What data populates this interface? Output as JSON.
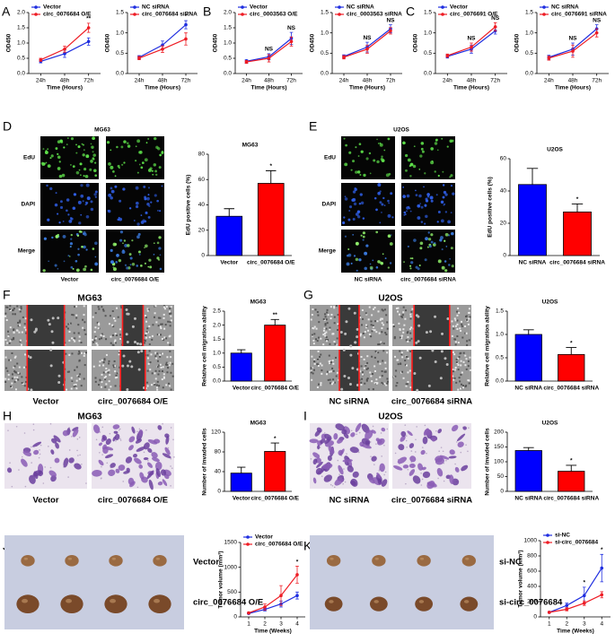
{
  "panel_labels": [
    "A",
    "B",
    "C",
    "D",
    "E",
    "F",
    "G",
    "H",
    "I",
    "J",
    "K"
  ],
  "image_panels": [
    {
      "title": "MG63",
      "rows": [
        "EdU",
        "DAPI",
        "Merge"
      ],
      "columns": [
        "Vector",
        "circ_0076684 O/E"
      ]
    },
    {
      "title": "U2OS",
      "rows": [
        "EdU",
        "DAPI",
        "Merge"
      ],
      "columns": [
        "NC siRNA",
        "circ_0076684 siRNA"
      ]
    },
    {
      "title": "MG63",
      "columns": [
        "Vector",
        "circ_0076684 O/E"
      ]
    },
    {
      "title": "U2OS",
      "columns": [
        "NC siRNA",
        "circ_0076684 siRNA"
      ]
    },
    {
      "title": "MG63",
      "columns": [
        "Vector",
        "circ_0076684 O/E"
      ]
    },
    {
      "title": "U2OS",
      "columns": [
        "NC siRNA",
        "circ_0076684 siRNA"
      ]
    },
    {
      "rows": [
        "Vector",
        "circ_0076684 O/E"
      ]
    },
    {
      "rows": [
        "si-NC",
        "si-circ_0076684"
      ]
    }
  ],
  "chart_data": [
    {
      "type": "line",
      "categories": [
        "24h",
        "48h",
        "72h"
      ],
      "x_label": "Time (Hours)",
      "y_label": "OD450",
      "ylim": [
        0,
        2.0
      ],
      "yticks": [
        {
          "value": 0,
          "label": "0.0"
        },
        {
          "value": 0.5,
          "label": "0.5"
        },
        {
          "value": 1.0,
          "label": "1.0"
        },
        {
          "value": 1.5,
          "label": "1.5"
        },
        {
          "value": 2.0,
          "label": "2.0"
        }
      ],
      "legend": "upper left",
      "series": [
        {
          "name": "Vector",
          "color": "#1f2ee0",
          "values": [
            0.4,
            0.65,
            1.05
          ],
          "errors": [
            0.05,
            0.12,
            0.12
          ]
        },
        {
          "name": "circ_0076684 O/E",
          "color": "#ee1c24",
          "values": [
            0.45,
            0.8,
            1.5
          ],
          "errors": [
            0.05,
            0.1,
            0.15
          ]
        }
      ],
      "annotations": [
        {
          "text": "**",
          "category": "72h"
        }
      ]
    },
    {
      "type": "line",
      "categories": [
        "24h",
        "48h",
        "72h"
      ],
      "x_label": "Time (Hours)",
      "y_label": "OD450",
      "ylim": [
        0,
        1.5
      ],
      "yticks": [
        {
          "value": 0,
          "label": "0.0"
        },
        {
          "value": 0.5,
          "label": "0.5"
        },
        {
          "value": 1.0,
          "label": "1.0"
        },
        {
          "value": 1.5,
          "label": "1.5"
        }
      ],
      "legend": "upper left",
      "series": [
        {
          "name": "NC siRNA",
          "color": "#1f2ee0",
          "values": [
            0.4,
            0.7,
            1.2
          ],
          "errors": [
            0.04,
            0.1,
            0.1
          ]
        },
        {
          "name": "circ_0076684 siRNA",
          "color": "#ee1c24",
          "values": [
            0.38,
            0.6,
            0.85
          ],
          "errors": [
            0.04,
            0.08,
            0.15
          ]
        }
      ],
      "annotations": [
        {
          "text": "*",
          "category": "72h"
        }
      ]
    },
    {
      "type": "line",
      "categories": [
        "24h",
        "48h",
        "72h"
      ],
      "x_label": "Time (Hours)",
      "y_label": "OD450",
      "ylim": [
        0,
        2.0
      ],
      "yticks": [
        {
          "value": 0,
          "label": "0.0"
        },
        {
          "value": 0.5,
          "label": "0.5"
        },
        {
          "value": 1.0,
          "label": "1.0"
        },
        {
          "value": 1.5,
          "label": "1.5"
        },
        {
          "value": 2.0,
          "label": "2.0"
        }
      ],
      "legend": "upper left",
      "series": [
        {
          "name": "Vector",
          "color": "#1f2ee0",
          "values": [
            0.4,
            0.55,
            1.15
          ],
          "errors": [
            0.06,
            0.1,
            0.2
          ]
        },
        {
          "name": "circ_0003563 O/E",
          "color": "#ee1c24",
          "values": [
            0.38,
            0.5,
            1.05
          ],
          "errors": [
            0.05,
            0.12,
            0.15
          ]
        }
      ],
      "annotations": [
        {
          "text": "NS",
          "category": "48h"
        },
        {
          "text": "NS",
          "category": "72h"
        }
      ]
    },
    {
      "type": "line",
      "categories": [
        "24h",
        "48h",
        "72h"
      ],
      "x_label": "Time (Hours)",
      "y_label": "OD450",
      "ylim": [
        0,
        1.5
      ],
      "yticks": [
        {
          "value": 0,
          "label": "0.0"
        },
        {
          "value": 0.5,
          "label": "0.5"
        },
        {
          "value": 1.0,
          "label": "1.0"
        },
        {
          "value": 1.5,
          "label": "1.5"
        }
      ],
      "legend": "upper left",
      "series": [
        {
          "name": "NC siRNA",
          "color": "#1f2ee0",
          "values": [
            0.42,
            0.65,
            1.1
          ],
          "errors": [
            0.04,
            0.12,
            0.1
          ]
        },
        {
          "name": "circ_0003563 siRNA",
          "color": "#ee1c24",
          "values": [
            0.4,
            0.6,
            1.05
          ],
          "errors": [
            0.04,
            0.1,
            0.08
          ]
        }
      ],
      "annotations": [
        {
          "text": "NS",
          "category": "48h"
        },
        {
          "text": "NS",
          "category": "72h"
        }
      ]
    },
    {
      "type": "line",
      "categories": [
        "24h",
        "48h",
        "72h"
      ],
      "x_label": "Time (Hours)",
      "y_label": "OD450",
      "ylim": [
        0,
        1.5
      ],
      "yticks": [
        {
          "value": 0,
          "label": "0.0"
        },
        {
          "value": 0.5,
          "label": "0.5"
        },
        {
          "value": 1.0,
          "label": "1.0"
        },
        {
          "value": 1.5,
          "label": "1.5"
        }
      ],
      "legend": "upper left",
      "series": [
        {
          "name": "Vector",
          "color": "#1f2ee0",
          "values": [
            0.42,
            0.6,
            1.05
          ],
          "errors": [
            0.04,
            0.1,
            0.08
          ]
        },
        {
          "name": "circ_0076691 O/E",
          "color": "#ee1c24",
          "values": [
            0.44,
            0.65,
            1.15
          ],
          "errors": [
            0.04,
            0.1,
            0.1
          ]
        }
      ],
      "annotations": [
        {
          "text": "NS",
          "category": "48h"
        },
        {
          "text": "NS",
          "category": "72h"
        }
      ]
    },
    {
      "type": "line",
      "categories": [
        "24h",
        "48h",
        "72h"
      ],
      "x_label": "Time (Hours)",
      "y_label": "OD450",
      "ylim": [
        0,
        1.5
      ],
      "yticks": [
        {
          "value": 0,
          "label": "0.0"
        },
        {
          "value": 0.5,
          "label": "0.5"
        },
        {
          "value": 1.0,
          "label": "1.0"
        },
        {
          "value": 1.5,
          "label": "1.5"
        }
      ],
      "legend": "upper left",
      "series": [
        {
          "name": "NC siRNA",
          "color": "#1f2ee0",
          "values": [
            0.4,
            0.6,
            1.1
          ],
          "errors": [
            0.05,
            0.15,
            0.1
          ]
        },
        {
          "name": "circ_0076691 siRNA",
          "color": "#ee1c24",
          "values": [
            0.38,
            0.55,
            1.0
          ],
          "errors": [
            0.05,
            0.15,
            0.1
          ]
        }
      ],
      "annotations": [
        {
          "text": "NS",
          "category": "48h"
        },
        {
          "text": "NS",
          "category": "72h"
        }
      ]
    },
    {
      "type": "bar",
      "title": "MG63",
      "y_label": "EdU positive cells (%)",
      "categories": [
        "Vector",
        "circ_0076684 O/E"
      ],
      "values": [
        31,
        57
      ],
      "errors": [
        6,
        10
      ],
      "colors": [
        "#0000ff",
        "#ff0000"
      ],
      "ylim": [
        0,
        80
      ],
      "yticks": [
        0,
        20,
        40,
        60,
        80
      ],
      "annotations": [
        {
          "text": "*",
          "category": "circ_0076684 O/E"
        }
      ]
    },
    {
      "type": "bar",
      "title": "U2OS",
      "y_label": "EdU positive cells (%)",
      "categories": [
        "NC siRNA",
        "circ_0076684 siRNA"
      ],
      "values": [
        44,
        27
      ],
      "errors": [
        10,
        5
      ],
      "colors": [
        "#0000ff",
        "#ff0000"
      ],
      "ylim": [
        0,
        60
      ],
      "yticks": [
        0,
        20,
        40,
        60
      ],
      "annotations": [
        {
          "text": "*",
          "category": "circ_0076684 siRNA"
        }
      ]
    },
    {
      "type": "bar",
      "title": "MG63",
      "y_label": "Relative cell migration ability",
      "categories": [
        "Vector",
        "circ_0076684 O/E"
      ],
      "values": [
        1.0,
        2.0
      ],
      "errors": [
        0.12,
        0.2
      ],
      "colors": [
        "#0000ff",
        "#ff0000"
      ],
      "ylim": [
        0,
        2.5
      ],
      "yticks": [
        {
          "value": 0,
          "label": "0.0"
        },
        {
          "value": 0.5,
          "label": "0.5"
        },
        {
          "value": 1.0,
          "label": "1.0"
        },
        {
          "value": 1.5,
          "label": "1.5"
        },
        {
          "value": 2.0,
          "label": "2.0"
        },
        {
          "value": 2.5,
          "label": "2.5"
        }
      ],
      "annotations": [
        {
          "text": "**",
          "category": "circ_0076684 O/E"
        }
      ]
    },
    {
      "type": "bar",
      "title": "U2OS",
      "y_label": "Relative cell migration ability",
      "categories": [
        "NC siRNA",
        "circ_0076684 siRNA"
      ],
      "values": [
        1.0,
        0.57
      ],
      "errors": [
        0.1,
        0.15
      ],
      "colors": [
        "#0000ff",
        "#ff0000"
      ],
      "ylim": [
        0,
        1.5
      ],
      "yticks": [
        {
          "value": 0,
          "label": "0.0"
        },
        {
          "value": 0.5,
          "label": "0.5"
        },
        {
          "value": 1.0,
          "label": "1.0"
        },
        {
          "value": 1.5,
          "label": "1.5"
        }
      ],
      "annotations": [
        {
          "text": "*",
          "category": "circ_0076684 siRNA"
        }
      ]
    },
    {
      "type": "bar",
      "title": "MG63",
      "y_label": "Number of invaded cells",
      "categories": [
        "Vector",
        "circ_0076684 O/E"
      ],
      "values": [
        37,
        81
      ],
      "errors": [
        12,
        17
      ],
      "colors": [
        "#0000ff",
        "#ff0000"
      ],
      "ylim": [
        0,
        120
      ],
      "yticks": [
        0,
        40,
        80,
        120
      ],
      "annotations": [
        {
          "text": "*",
          "category": "circ_0076684 O/E"
        }
      ]
    },
    {
      "type": "bar",
      "title": "U2OS",
      "y_label": "Number of invaded cells",
      "categories": [
        "NC siRNA",
        "circ_0076684 siRNA"
      ],
      "values": [
        138,
        68
      ],
      "errors": [
        10,
        20
      ],
      "colors": [
        "#0000ff",
        "#ff0000"
      ],
      "ylim": [
        0,
        200
      ],
      "yticks": [
        0,
        50,
        100,
        150,
        200
      ],
      "annotations": [
        {
          "text": "*",
          "category": "circ_0076684 siRNA"
        }
      ]
    },
    {
      "type": "line",
      "x": [
        1,
        2,
        3,
        4
      ],
      "x_label": "Time (Weeks)",
      "y_label": "Tumor volume (mm³)",
      "xlim": [
        0.5,
        4.5
      ],
      "xticks": [
        1,
        2,
        3,
        4
      ],
      "ylim": [
        0,
        1500
      ],
      "yticks": [
        0,
        500,
        1000,
        1500
      ],
      "legend": "upper left",
      "series": [
        {
          "name": "Vector",
          "color": "#1f2ee0",
          "values": [
            70,
            150,
            260,
            430
          ],
          "errors": [
            10,
            30,
            60,
            70
          ]
        },
        {
          "name": "circ_0076684 O/E",
          "color": "#ee1c24",
          "values": [
            80,
            200,
            430,
            850
          ],
          "errors": [
            15,
            60,
            200,
            170
          ]
        }
      ],
      "annotations": [
        {
          "text": "*",
          "x": 4
        }
      ]
    },
    {
      "type": "line",
      "x": [
        1,
        2,
        3,
        4
      ],
      "x_label": "Time (Weeks)",
      "y_label": "Tumor volume (mm³)",
      "xlim": [
        0.5,
        4.5
      ],
      "xticks": [
        1,
        2,
        3,
        4
      ],
      "ylim": [
        0,
        1000
      ],
      "yticks": [
        0,
        200,
        400,
        600,
        800,
        1000
      ],
      "legend": "upper left",
      "series": [
        {
          "name": "si-NC",
          "color": "#1f2ee0",
          "values": [
            60,
            150,
            280,
            640
          ],
          "errors": [
            10,
            30,
            110,
            180
          ]
        },
        {
          "name": "si-circ_0076684",
          "color": "#ee1c24",
          "values": [
            60,
            100,
            180,
            290
          ],
          "errors": [
            10,
            20,
            30,
            40
          ]
        }
      ],
      "annotations": [
        {
          "text": "*",
          "x": 3
        },
        {
          "text": "*",
          "x": 4
        }
      ]
    }
  ]
}
